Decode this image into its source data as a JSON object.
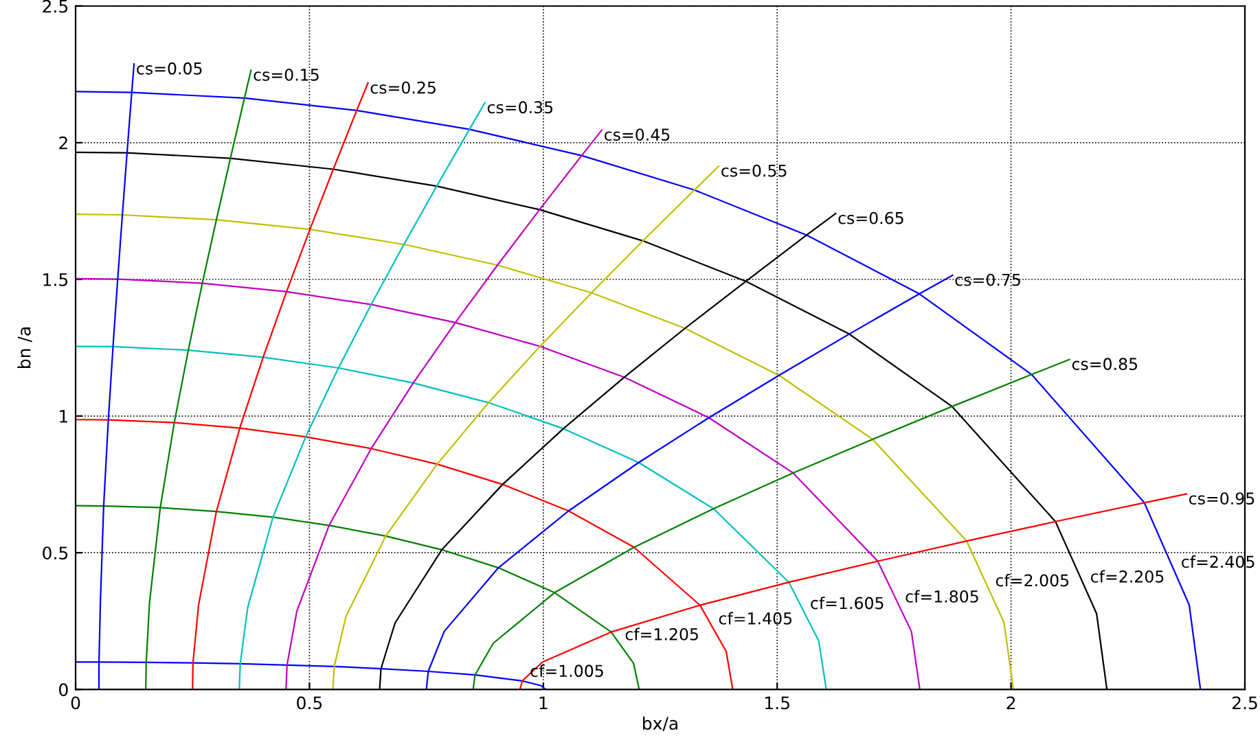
{
  "chart_data": {
    "type": "line",
    "xlabel": "bx/a",
    "ylabel": "bn /a",
    "xlim": [
      0,
      2.5
    ],
    "ylim": [
      0,
      2.5
    ],
    "xticks": [
      0,
      0.5,
      1,
      1.5,
      2,
      2.5
    ],
    "yticks": [
      0,
      0.5,
      1,
      1.5,
      2,
      2.5
    ],
    "grid": true,
    "marker": "none",
    "line_style": "solid",
    "series": [
      {
        "color": "#0000ff",
        "x": [
          0,
          0.05,
          0.151,
          0.251,
          0.352,
          0.452,
          0.553,
          0.653,
          0.754,
          0.854,
          0.955,
          0.995,
          1.005
        ],
        "values": [
          0.1,
          0.1,
          0.099,
          0.097,
          0.094,
          0.089,
          0.084,
          0.076,
          0.066,
          0.053,
          0.031,
          0.014,
          0
        ]
      },
      {
        "color": "#008000",
        "x": [
          0,
          0.06,
          0.181,
          0.301,
          0.422,
          0.542,
          0.663,
          0.783,
          0.904,
          1.024,
          1.145,
          1.193,
          1.205
        ],
        "values": [
          0.672,
          0.671,
          0.665,
          0.651,
          0.63,
          0.6,
          0.561,
          0.511,
          0.445,
          0.354,
          0.21,
          0.095,
          0
        ]
      },
      {
        "color": "#ff0000",
        "x": [
          0,
          0.07,
          0.211,
          0.351,
          0.492,
          0.632,
          0.773,
          0.913,
          1.054,
          1.194,
          1.335,
          1.391,
          1.405
        ],
        "values": [
          0.987,
          0.986,
          0.976,
          0.956,
          0.924,
          0.881,
          0.824,
          0.75,
          0.653,
          0.52,
          0.308,
          0.139,
          0
        ]
      },
      {
        "color": "#00bfbf",
        "x": [
          0,
          0.08,
          0.241,
          0.401,
          0.562,
          0.722,
          0.883,
          1.043,
          1.204,
          1.364,
          1.525,
          1.589,
          1.605
        ],
        "values": [
          1.255,
          1.254,
          1.241,
          1.215,
          1.176,
          1.121,
          1.049,
          0.954,
          0.83,
          0.661,
          0.392,
          0.177,
          0
        ]
      },
      {
        "color": "#bf00bf",
        "x": [
          0,
          0.09,
          0.271,
          0.451,
          0.632,
          0.812,
          0.993,
          1.173,
          1.354,
          1.534,
          1.715,
          1.787,
          1.805
        ],
        "values": [
          1.503,
          1.501,
          1.486,
          1.455,
          1.408,
          1.342,
          1.255,
          1.142,
          0.994,
          0.792,
          0.469,
          0.212,
          0
        ]
      },
      {
        "color": "#bfbf00",
        "x": [
          0,
          0.1,
          0.301,
          0.501,
          0.702,
          0.902,
          1.103,
          1.303,
          1.504,
          1.704,
          1.905,
          1.985,
          2.005
        ],
        "values": [
          1.738,
          1.736,
          1.718,
          1.683,
          1.628,
          1.552,
          1.451,
          1.321,
          1.149,
          0.915,
          0.543,
          0.245,
          0
        ]
      },
      {
        "color": "#000000",
        "x": [
          0,
          0.11,
          0.331,
          0.551,
          0.772,
          0.992,
          1.213,
          1.433,
          1.654,
          1.874,
          2.095,
          2.183,
          2.205
        ],
        "values": [
          1.965,
          1.963,
          1.943,
          1.903,
          1.841,
          1.755,
          1.641,
          1.493,
          1.3,
          1.035,
          0.614,
          0.277,
          0
        ]
      },
      {
        "color": "#0000ff",
        "x": [
          0,
          0.12,
          0.361,
          0.601,
          0.842,
          1.082,
          1.323,
          1.563,
          1.804,
          2.044,
          2.285,
          2.381,
          2.405
        ],
        "values": [
          2.187,
          2.184,
          2.163,
          2.118,
          2.049,
          1.953,
          1.827,
          1.662,
          1.447,
          1.152,
          0.683,
          0.309,
          0
        ]
      },
      {
        "color": "#0000ff",
        "x": [
          0.05,
          0.05,
          0.053,
          0.06,
          0.07,
          0.08,
          0.09,
          0.1,
          0.11,
          0.12,
          0.125
        ],
        "values": [
          0,
          0.1,
          0.32,
          0.671,
          0.986,
          1.254,
          1.501,
          1.736,
          1.963,
          2.184,
          2.288
        ]
      },
      {
        "color": "#008000",
        "x": [
          0.15,
          0.151,
          0.158,
          0.181,
          0.211,
          0.241,
          0.271,
          0.301,
          0.331,
          0.361,
          0.375
        ],
        "values": [
          0,
          0.099,
          0.317,
          0.665,
          0.976,
          1.241,
          1.486,
          1.718,
          1.943,
          2.163,
          2.265
        ]
      },
      {
        "color": "#ff0000",
        "x": [
          0.25,
          0.251,
          0.263,
          0.301,
          0.351,
          0.401,
          0.451,
          0.501,
          0.551,
          0.601,
          0.625
        ],
        "values": [
          0,
          0.097,
          0.31,
          0.651,
          0.956,
          1.215,
          1.455,
          1.683,
          1.903,
          2.118,
          2.218
        ]
      },
      {
        "color": "#00bfbf",
        "x": [
          0.35,
          0.352,
          0.368,
          0.422,
          0.492,
          0.562,
          0.632,
          0.702,
          0.772,
          0.842,
          0.875
        ],
        "values": [
          0,
          0.094,
          0.3,
          0.63,
          0.924,
          1.176,
          1.408,
          1.628,
          1.841,
          2.049,
          2.146
        ]
      },
      {
        "color": "#bf00bf",
        "x": [
          0.45,
          0.452,
          0.473,
          0.542,
          0.632,
          0.722,
          0.812,
          0.902,
          0.992,
          1.082,
          1.125
        ],
        "values": [
          0,
          0.089,
          0.286,
          0.6,
          0.881,
          1.121,
          1.342,
          1.552,
          1.755,
          1.953,
          2.046
        ]
      },
      {
        "color": "#bfbf00",
        "x": [
          0.55,
          0.553,
          0.578,
          0.663,
          0.773,
          0.883,
          0.993,
          1.103,
          1.213,
          1.323,
          1.375
        ],
        "values": [
          0,
          0.084,
          0.267,
          0.561,
          0.824,
          1.049,
          1.255,
          1.451,
          1.641,
          1.827,
          1.914
        ]
      },
      {
        "color": "#000000",
        "x": [
          0.65,
          0.653,
          0.683,
          0.783,
          0.913,
          1.043,
          1.173,
          1.303,
          1.433,
          1.563,
          1.625
        ],
        "values": [
          0,
          0.076,
          0.243,
          0.511,
          0.75,
          0.954,
          1.142,
          1.321,
          1.493,
          1.662,
          1.741
        ]
      },
      {
        "color": "#0000ff",
        "x": [
          0.75,
          0.754,
          0.788,
          0.904,
          1.054,
          1.204,
          1.354,
          1.504,
          1.654,
          1.804,
          1.875
        ],
        "values": [
          0,
          0.066,
          0.212,
          0.445,
          0.653,
          0.83,
          0.994,
          1.149,
          1.3,
          1.447,
          1.515
        ]
      },
      {
        "color": "#008000",
        "x": [
          0.85,
          0.854,
          0.893,
          1.024,
          1.194,
          1.364,
          1.534,
          1.704,
          1.874,
          2.044,
          2.125
        ],
        "values": [
          0,
          0.053,
          0.169,
          0.354,
          0.52,
          0.661,
          0.792,
          0.915,
          1.035,
          1.152,
          1.207
        ]
      },
      {
        "color": "#ff0000",
        "x": [
          0.95,
          0.955,
          0.998,
          1.145,
          1.335,
          1.525,
          1.715,
          1.905,
          2.095,
          2.285,
          2.375
        ],
        "values": [
          0,
          0.031,
          0.1,
          0.21,
          0.308,
          0.392,
          0.469,
          0.543,
          0.614,
          0.683,
          0.715
        ]
      }
    ],
    "annotations": [
      {
        "text": "cf=1.005",
        "x": 0.967,
        "y": 0.027
      },
      {
        "text": "cf=1.205",
        "x": 1.17,
        "y": 0.161
      },
      {
        "text": "cf=1.405",
        "x": 1.37,
        "y": 0.219
      },
      {
        "text": "cf=1.605",
        "x": 1.566,
        "y": 0.275
      },
      {
        "text": "cf=1.805",
        "x": 1.769,
        "y": 0.299
      },
      {
        "text": "cf=2.005",
        "x": 1.962,
        "y": 0.358
      },
      {
        "text": "cf=2.205",
        "x": 2.165,
        "y": 0.372
      },
      {
        "text": "cf=2.405",
        "x": 2.359,
        "y": 0.426
      },
      {
        "text": "cs=0.05",
        "x": 0.125,
        "y": 2.288
      },
      {
        "text": "cs=0.15",
        "x": 0.375,
        "y": 2.265
      },
      {
        "text": "cs=0.25",
        "x": 0.625,
        "y": 2.218
      },
      {
        "text": "cs=0.35",
        "x": 0.875,
        "y": 2.146
      },
      {
        "text": "cs=0.45",
        "x": 1.125,
        "y": 2.046
      },
      {
        "text": "cs=0.55",
        "x": 1.375,
        "y": 1.914
      },
      {
        "text": "cs=0.65",
        "x": 1.625,
        "y": 1.741
      },
      {
        "text": "cs=0.75",
        "x": 1.875,
        "y": 1.515
      },
      {
        "text": "cs=0.85",
        "x": 2.125,
        "y": 1.207
      },
      {
        "text": "cs=0.95",
        "x": 2.375,
        "y": 0.715
      }
    ]
  }
}
